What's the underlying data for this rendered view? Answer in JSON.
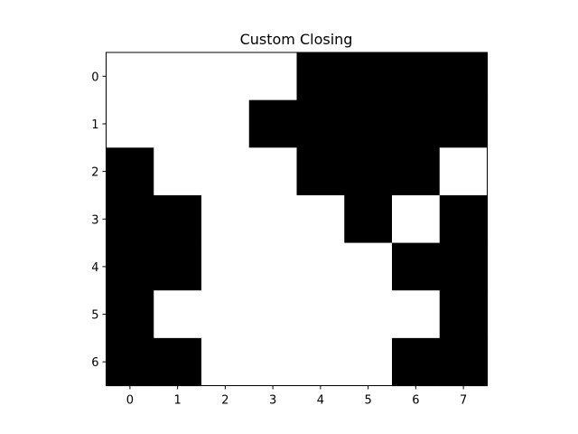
{
  "chart_data": {
    "type": "heatmap",
    "title": "Custom Closing",
    "xlabel": "",
    "ylabel": "",
    "colormap": "gray",
    "colors": {
      "zero": "#000000",
      "one": "#ffffff"
    },
    "x_ticks": [
      "0",
      "1",
      "2",
      "3",
      "4",
      "5",
      "6",
      "7"
    ],
    "y_ticks": [
      "0",
      "1",
      "2",
      "3",
      "4",
      "5",
      "6"
    ],
    "grid": [
      [
        1,
        1,
        1,
        1,
        0,
        0,
        0,
        0
      ],
      [
        1,
        1,
        1,
        0,
        0,
        0,
        0,
        0
      ],
      [
        0,
        1,
        1,
        1,
        0,
        0,
        0,
        1
      ],
      [
        0,
        0,
        1,
        1,
        1,
        0,
        1,
        0
      ],
      [
        0,
        0,
        1,
        1,
        1,
        1,
        0,
        0
      ],
      [
        0,
        1,
        1,
        1,
        1,
        1,
        1,
        0
      ],
      [
        0,
        0,
        1,
        1,
        1,
        1,
        0,
        0
      ]
    ]
  }
}
